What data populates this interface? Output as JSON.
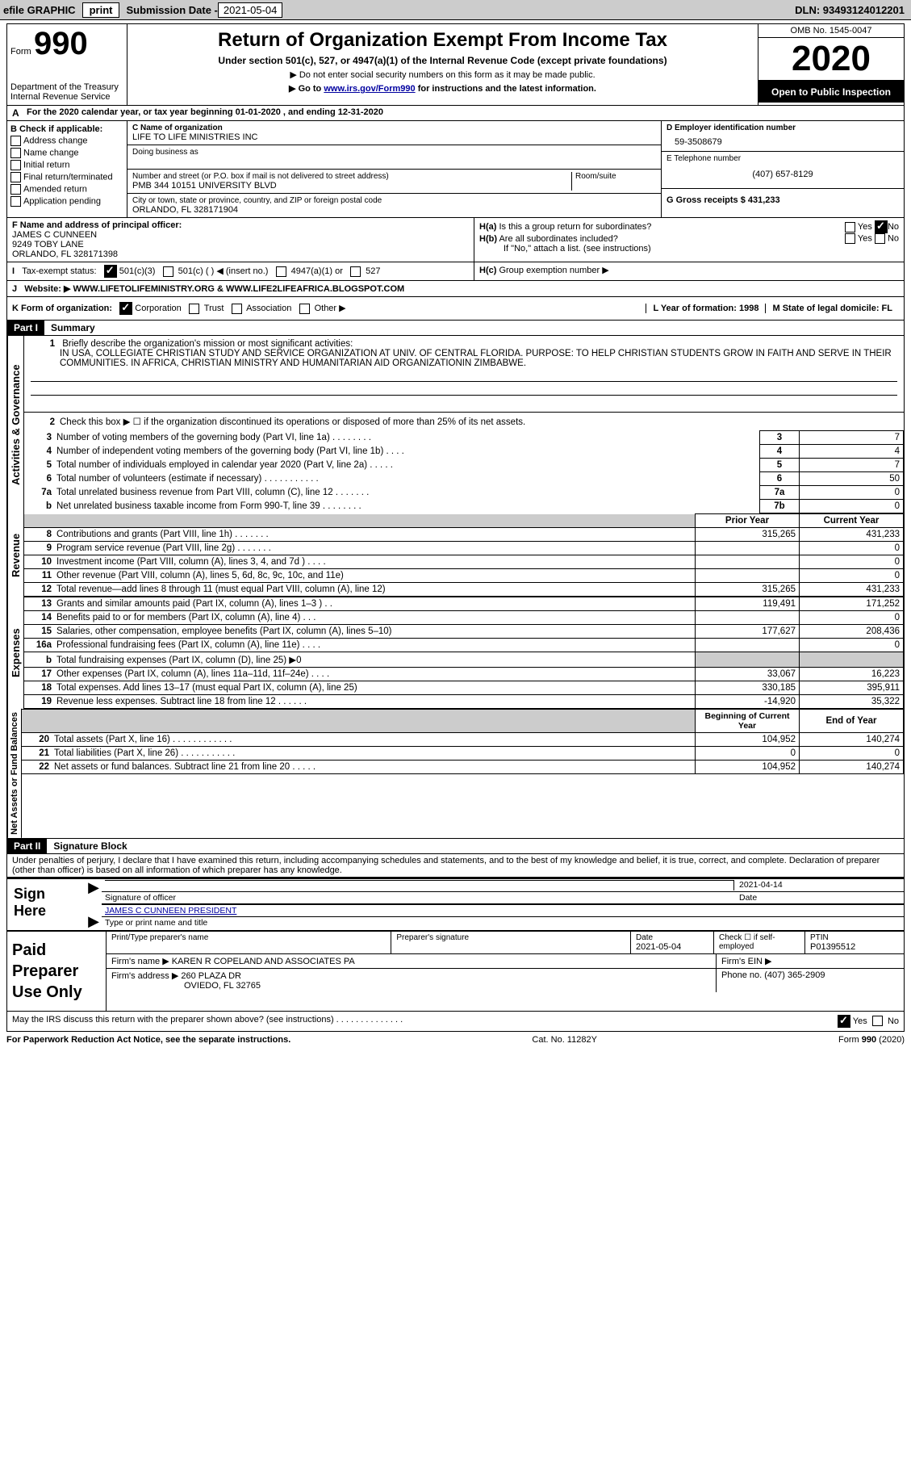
{
  "topbar": {
    "efile_label": "efile GRAPHIC",
    "print_btn": "print",
    "submission_label": "Submission Date -",
    "submission_date": "2021-05-04",
    "dln_label": "DLN: 93493124012201"
  },
  "header": {
    "form_prefix": "Form",
    "form_number": "990",
    "dept1": "Department of the Treasury",
    "dept2": "Internal Revenue Service",
    "main_title": "Return of Organization Exempt From Income Tax",
    "subtitle": "Under section 501(c), 527, or 4947(a)(1) of the Internal Revenue Code (except private foundations)",
    "note1": "▶ Do not enter social security numbers on this form as it may be made public.",
    "note2_prefix": "▶ Go to ",
    "note2_link": "www.irs.gov/Form990",
    "note2_suffix": " for instructions and the latest information.",
    "omb": "OMB No. 1545-0047",
    "tax_year": "2020",
    "open_pub": "Open to Public Inspection"
  },
  "line_a": {
    "prefix": "A",
    "text": "For the 2020 calendar year, or tax year beginning 01-01-2020    , and ending 12-31-2020"
  },
  "col_b": {
    "header": "B Check if applicable:",
    "items": [
      "Address change",
      "Name change",
      "Initial return",
      "Final return/terminated",
      "Amended return",
      "Application pending"
    ]
  },
  "col_c": {
    "name_label": "C Name of organization",
    "name_value": "LIFE TO LIFE MINISTRIES INC",
    "dba_label": "Doing business as",
    "street_label": "Number and street (or P.O. box if mail is not delivered to street address)",
    "street_value": "PMB 344 10151 UNIVERSITY BLVD",
    "room_label": "Room/suite",
    "city_label": "City or town, state or province, country, and ZIP or foreign postal code",
    "city_value": "ORLANDO, FL  328171904"
  },
  "col_right": {
    "ein_label": "D Employer identification number",
    "ein_value": "59-3508679",
    "phone_label": "E Telephone number",
    "phone_value": "(407) 657-8129",
    "gross_label": "G Gross receipts $ 431,233"
  },
  "lower": {
    "f_label": "F Name and address of principal officer:",
    "f_name": "JAMES C CUNNEEN",
    "f_addr1": "9249 TOBY LANE",
    "f_addr2": "ORLANDO, FL  328171398",
    "ha_label": "H(a)",
    "ha_text": "Is this a group return for subordinates?",
    "hb_label": "H(b)",
    "hb_text": "Are all subordinates included?",
    "hb_note": "If \"No,\" attach a list. (see instructions)",
    "hc_label": "H(c)",
    "hc_text": "Group exemption number ▶",
    "yes": "Yes",
    "no": "No",
    "i_label": "I",
    "i_text": "Tax-exempt status:",
    "i_opts": [
      "501(c)(3)",
      "501(c) (   ) ◀ (insert no.)",
      "4947(a)(1) or",
      "527"
    ],
    "j_label": "J",
    "j_text": "Website: ▶",
    "j_value": "WWW.LIFETOLIFEMINISTRY.ORG & WWW.LIFE2LIFEAFRICA.BLOGSPOT.COM",
    "k_label": "K Form of organization:",
    "k_opts": [
      "Corporation",
      "Trust",
      "Association",
      "Other ▶"
    ],
    "l_label": "L Year of formation: 1998",
    "m_label": "M State of legal domicile: FL"
  },
  "part1": {
    "part_label": "Part I",
    "title": "Summary",
    "q1_label": "1",
    "q1_text": "Briefly describe the organization's mission or most significant activities:",
    "q1_value": "IN USA, COLLEGIATE CHRISTIAN STUDY AND SERVICE ORGANIZATION AT UNIV. OF CENTRAL FLORIDA. PURPOSE: TO HELP CHRISTIAN STUDENTS GROW IN FAITH AND SERVE IN THEIR COMMUNITIES. IN AFRICA, CHRISTIAN MINISTRY AND HUMANITARIAN AID ORGANIZATIONIN ZIMBABWE.",
    "q2": "Check this box ▶ ☐ if the organization discontinued its operations or disposed of more than 25% of its net assets.",
    "lines_ag": [
      {
        "num": "3",
        "text": "Number of voting members of the governing body (Part VI, line 1a)   .   .   .   .   .   .   .   .",
        "box": "3",
        "val": "7"
      },
      {
        "num": "4",
        "text": "Number of independent voting members of the governing body (Part VI, line 1b)   .   .   .   .",
        "box": "4",
        "val": "4"
      },
      {
        "num": "5",
        "text": "Total number of individuals employed in calendar year 2020 (Part V, line 2a)   .   .   .   .   .",
        "box": "5",
        "val": "7"
      },
      {
        "num": "6",
        "text": "Total number of volunteers (estimate if necessary)   .   .   .   .   .   .   .   .   .   .   .",
        "box": "6",
        "val": "50"
      },
      {
        "num": "7a",
        "text": "Total unrelated business revenue from Part VIII, column (C), line 12   .   .   .   .   .   .   .",
        "box": "7a",
        "val": "0"
      },
      {
        "num": "b",
        "text": "Net unrelated business taxable income from Form 990-T, line 39   .   .   .   .   .   .   .   .",
        "box": "7b",
        "val": "0"
      }
    ],
    "prior_year": "Prior Year",
    "current_year": "Current Year",
    "vert_activities": "Activities & Governance",
    "vert_revenue": "Revenue",
    "vert_expenses": "Expenses",
    "vert_netassets": "Net Assets or Fund Balances",
    "lines_rev": [
      {
        "num": "8",
        "text": "Contributions and grants (Part VIII, line 1h)   .   .   .   .   .   .   .",
        "py": "315,265",
        "cy": "431,233"
      },
      {
        "num": "9",
        "text": "Program service revenue (Part VIII, line 2g)   .   .   .   .   .   .   .",
        "py": "",
        "cy": "0"
      },
      {
        "num": "10",
        "text": "Investment income (Part VIII, column (A), lines 3, 4, and 7d )   .   .   .   .",
        "py": "",
        "cy": "0"
      },
      {
        "num": "11",
        "text": "Other revenue (Part VIII, column (A), lines 5, 6d, 8c, 9c, 10c, and 11e)",
        "py": "",
        "cy": "0"
      },
      {
        "num": "12",
        "text": "Total revenue—add lines 8 through 11 (must equal Part VIII, column (A), line 12)",
        "py": "315,265",
        "cy": "431,233"
      }
    ],
    "lines_exp": [
      {
        "num": "13",
        "text": "Grants and similar amounts paid (Part IX, column (A), lines 1–3 )   .   .",
        "py": "119,491",
        "cy": "171,252"
      },
      {
        "num": "14",
        "text": "Benefits paid to or for members (Part IX, column (A), line 4)   .   .   .",
        "py": "",
        "cy": "0"
      },
      {
        "num": "15",
        "text": "Salaries, other compensation, employee benefits (Part IX, column (A), lines 5–10)",
        "py": "177,627",
        "cy": "208,436"
      },
      {
        "num": "16a",
        "text": "Professional fundraising fees (Part IX, column (A), line 11e)   .   .   .   .",
        "py": "",
        "cy": "0"
      },
      {
        "num": "b",
        "text": "Total fundraising expenses (Part IX, column (D), line 25) ▶0",
        "py": "GREY",
        "cy": "GREY"
      },
      {
        "num": "17",
        "text": "Other expenses (Part IX, column (A), lines 11a–11d, 11f–24e)   .   .   .   .",
        "py": "33,067",
        "cy": "16,223"
      },
      {
        "num": "18",
        "text": "Total expenses. Add lines 13–17 (must equal Part IX, column (A), line 25)",
        "py": "330,185",
        "cy": "395,911"
      },
      {
        "num": "19",
        "text": "Revenue less expenses. Subtract line 18 from line 12   .   .   .   .   .   .",
        "py": "-14,920",
        "cy": "35,322"
      }
    ],
    "boy": "Beginning of Current Year",
    "eoy": "End of Year",
    "lines_na": [
      {
        "num": "20",
        "text": "Total assets (Part X, line 16)   .   .   .   .   .   .   .   .   .   .   .   .",
        "py": "104,952",
        "cy": "140,274"
      },
      {
        "num": "21",
        "text": "Total liabilities (Part X, line 26)   .   .   .   .   .   .   .   .   .   .   .",
        "py": "0",
        "cy": "0"
      },
      {
        "num": "22",
        "text": "Net assets or fund balances. Subtract line 21 from line 20   .   .   .   .   .",
        "py": "104,952",
        "cy": "140,274"
      }
    ]
  },
  "part2": {
    "part_label": "Part II",
    "title": "Signature Block",
    "penalty": "Under penalties of perjury, I declare that I have examined this return, including accompanying schedules and statements, and to the best of my knowledge and belief, it is true, correct, and complete. Declaration of preparer (other than officer) is based on all information of which preparer has any knowledge.",
    "sign_here": "Sign Here",
    "sig_officer": "Signature of officer",
    "sig_date": "2021-04-14",
    "date_lbl": "Date",
    "printed_name": "JAMES C CUNNEEN PRESIDENT",
    "printed_lbl": "Type or print name and title",
    "paid_prep": "Paid Preparer Use Only",
    "prep_name_lbl": "Print/Type preparer's name",
    "prep_sig_lbl": "Preparer's signature",
    "prep_date_lbl": "Date",
    "prep_date": "2021-05-04",
    "check_if": "Check ☐ if self-employed",
    "ptin_lbl": "PTIN",
    "ptin": "P01395512",
    "firm_name_lbl": "Firm's name    ▶",
    "firm_name": "KAREN R COPELAND AND ASSOCIATES PA",
    "firm_ein_lbl": "Firm's EIN ▶",
    "firm_addr_lbl": "Firm's address ▶",
    "firm_addr1": "260 PLAZA DR",
    "firm_addr2": "OVIEDO, FL  32765",
    "firm_phone_lbl": "Phone no. (407) 365-2909",
    "may_irs": "May the IRS discuss this return with the preparer shown above? (see instructions)   .   .   .   .   .   .   .   .   .   .   .   .   .   .",
    "paperwork": "For Paperwork Reduction Act Notice, see the separate instructions.",
    "cat": "Cat. No. 11282Y",
    "form_footer": "Form 990 (2020)"
  }
}
